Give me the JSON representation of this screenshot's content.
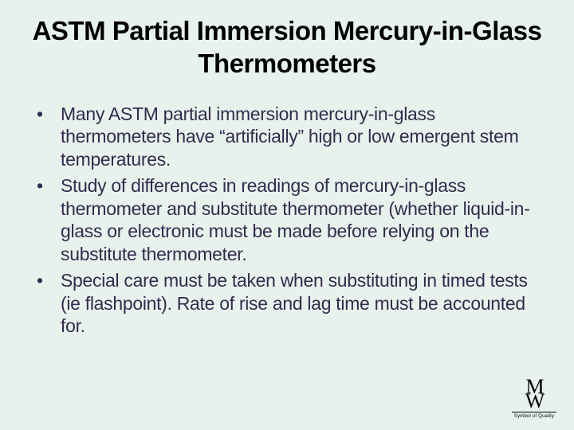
{
  "background_color": "#e8f2ed",
  "text_color": "#332b4e",
  "title_color": "#000000",
  "title_fontsize": 33,
  "body_fontsize": 23,
  "font_family": "Verdana, Geneva, sans-serif",
  "slide": {
    "title": "ASTM Partial Immersion Mercury-in-Glass Thermometers",
    "bullets": [
      "Many ASTM partial immersion mercury-in-glass thermometers have “artificially” high or low emergent stem temperatures.",
      "Study of differences in readings of mercury-in-glass thermometer and substitute thermometer (whether liquid-in-glass or electronic must be made before relying on the substitute thermometer.",
      "Special care must be taken when substituting in timed tests (ie flashpoint).  Rate of rise and lag time must be accounted for."
    ]
  },
  "logo": {
    "mark_top": "M",
    "mark_bottom": "W",
    "tagline": "Symbol of Quality"
  }
}
